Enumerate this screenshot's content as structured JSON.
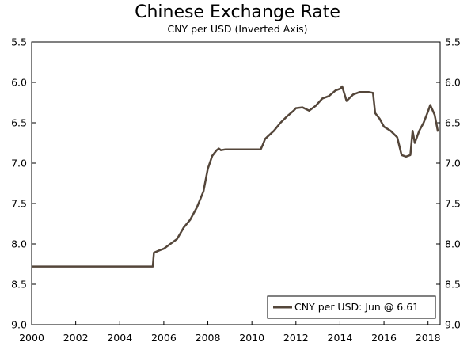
{
  "chart_data": {
    "type": "line",
    "title": "Chinese Exchange Rate",
    "subtitle": "CNY per USD (Inverted Axis)",
    "xlabel": "",
    "ylabel": "",
    "y_inverted": true,
    "ylim": [
      5.5,
      9.0
    ],
    "xlim": [
      2000,
      2018.55
    ],
    "x_ticks": [
      2000,
      2002,
      2004,
      2006,
      2008,
      2010,
      2012,
      2014,
      2016,
      2018
    ],
    "y_ticks": [
      5.5,
      6.0,
      6.5,
      7.0,
      7.5,
      8.0,
      8.5,
      9.0
    ],
    "y_tick_labels": [
      "5.5",
      "6.0",
      "6.5",
      "7.0",
      "7.5",
      "8.0",
      "8.5",
      "9.0"
    ],
    "legend_position": "bottom-right",
    "line_color": "#54463a",
    "series": [
      {
        "name": "CNY per USD: Jun @ 6.61",
        "x": [
          2000.0,
          2005.5,
          2005.55,
          2005.8,
          2006.0,
          2006.3,
          2006.6,
          2006.9,
          2007.2,
          2007.5,
          2007.8,
          2008.0,
          2008.2,
          2008.4,
          2008.5,
          2008.6,
          2008.8,
          2009.0,
          2009.5,
          2010.0,
          2010.4,
          2010.5,
          2010.6,
          2010.8,
          2011.0,
          2011.3,
          2011.6,
          2011.9,
          2012.0,
          2012.3,
          2012.6,
          2012.9,
          2013.2,
          2013.5,
          2013.8,
          2014.0,
          2014.1,
          2014.3,
          2014.6,
          2014.9,
          2015.3,
          2015.5,
          2015.6,
          2015.8,
          2016.0,
          2016.3,
          2016.6,
          2016.8,
          2017.0,
          2017.2,
          2017.3,
          2017.4,
          2017.6,
          2017.8,
          2018.0,
          2018.1,
          2018.3,
          2018.45
        ],
        "y": [
          8.28,
          8.28,
          8.11,
          8.08,
          8.06,
          8.0,
          7.94,
          7.8,
          7.7,
          7.55,
          7.35,
          7.07,
          6.91,
          6.84,
          6.82,
          6.84,
          6.83,
          6.83,
          6.83,
          6.83,
          6.83,
          6.77,
          6.7,
          6.65,
          6.6,
          6.5,
          6.42,
          6.35,
          6.32,
          6.31,
          6.35,
          6.29,
          6.2,
          6.17,
          6.1,
          6.08,
          6.05,
          6.23,
          6.15,
          6.12,
          6.12,
          6.13,
          6.38,
          6.45,
          6.55,
          6.6,
          6.68,
          6.9,
          6.92,
          6.9,
          6.6,
          6.75,
          6.6,
          6.5,
          6.36,
          6.28,
          6.4,
          6.61
        ]
      }
    ]
  }
}
